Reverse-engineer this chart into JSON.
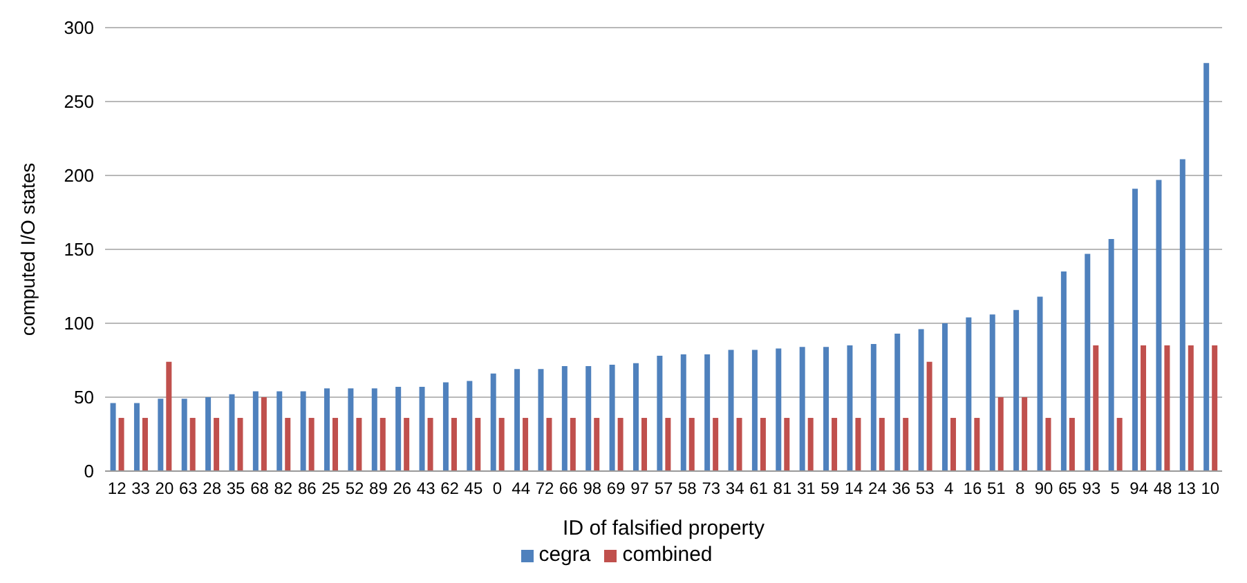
{
  "chart_data": {
    "type": "bar",
    "xlabel": "ID of falsified property",
    "ylabel": "computed I/O states",
    "categories": [
      "12",
      "33",
      "20",
      "63",
      "28",
      "35",
      "68",
      "82",
      "86",
      "25",
      "52",
      "89",
      "26",
      "43",
      "62",
      "45",
      "0",
      "44",
      "72",
      "66",
      "98",
      "69",
      "97",
      "57",
      "58",
      "73",
      "34",
      "61",
      "81",
      "31",
      "59",
      "14",
      "24",
      "36",
      "53",
      "4",
      "16",
      "51",
      "8",
      "90",
      "65",
      "93",
      "5",
      "94",
      "48",
      "13",
      "10"
    ],
    "series": [
      {
        "name": "cegra",
        "color": "#4f81bd",
        "values": [
          46,
          46,
          49,
          49,
          50,
          52,
          54,
          54,
          54,
          56,
          56,
          56,
          57,
          57,
          60,
          61,
          66,
          69,
          69,
          71,
          71,
          72,
          73,
          78,
          79,
          79,
          82,
          82,
          83,
          84,
          84,
          85,
          86,
          93,
          96,
          100,
          104,
          106,
          109,
          118,
          135,
          147,
          157,
          191,
          197,
          211,
          276
        ]
      },
      {
        "name": "combined",
        "color": "#c0504d",
        "values": [
          36,
          36,
          74,
          36,
          36,
          36,
          50,
          36,
          36,
          36,
          36,
          36,
          36,
          36,
          36,
          36,
          36,
          36,
          36,
          36,
          36,
          36,
          36,
          36,
          36,
          36,
          36,
          36,
          36,
          36,
          36,
          36,
          36,
          36,
          74,
          36,
          36,
          50,
          50,
          36,
          36,
          85,
          36,
          85,
          85,
          85,
          85
        ]
      }
    ],
    "ylim": [
      0,
      300
    ],
    "yticks": [
      0,
      50,
      100,
      150,
      200,
      250,
      300
    ],
    "grid": "y",
    "legend": "bottom"
  }
}
